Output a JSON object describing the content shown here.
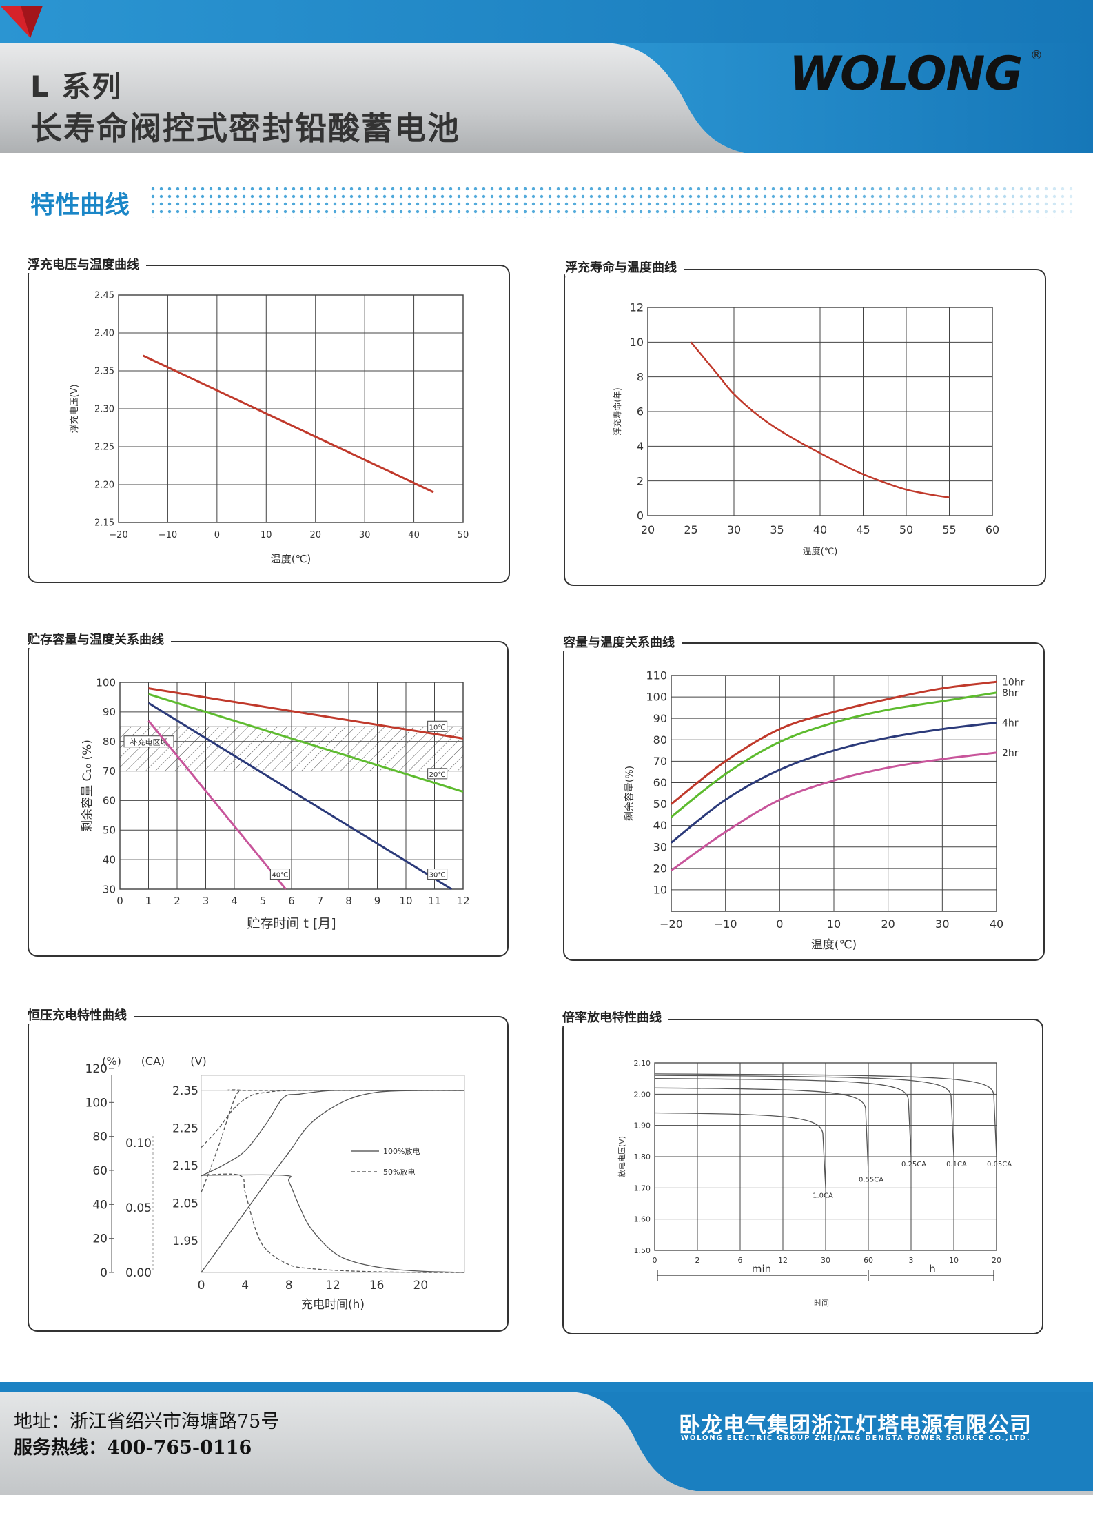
{
  "header": {
    "series_name": "L 系列",
    "product_name": "长寿命阀控式密封铅酸蓄电池",
    "brand_logo_text": "WOLONG",
    "brand_registered_mark": "®",
    "colors": {
      "blue": "#1a86c7",
      "gray": "#b9bcbe",
      "logo_red": "#d6222a"
    }
  },
  "section": {
    "title": "特性曲线"
  },
  "charts": {
    "float_voltage_temp": {
      "title": "浮充电压与温度曲线"
    },
    "float_life_temp": {
      "title": "浮充寿命与温度曲线"
    },
    "storage_capacity_temp": {
      "title": "贮存容量与温度关系曲线"
    },
    "capacity_temp": {
      "title": "容量与温度关系曲线"
    },
    "cv_charge": {
      "title": "恒压充电特性曲线"
    },
    "rate_discharge": {
      "title": "倍率放电特性曲线"
    }
  },
  "chart_data": [
    {
      "id": "float_voltage_temp",
      "type": "line",
      "xlabel": "温度(℃)",
      "ylabel": "浮充电压(V)",
      "xlim": [
        -20,
        50
      ],
      "ylim": [
        2.15,
        2.45
      ],
      "xticks": [
        -20,
        -10,
        0,
        10,
        20,
        30,
        40,
        50
      ],
      "yticks": [
        2.15,
        2.2,
        2.25,
        2.3,
        2.35,
        2.4,
        2.45
      ],
      "series": [
        {
          "color": "#c0392b",
          "x": [
            -15,
            44
          ],
          "y": [
            2.37,
            2.19
          ]
        }
      ]
    },
    {
      "id": "float_life_temp",
      "type": "line",
      "xlabel": "温度(℃)",
      "ylabel": "浮充寿命(年)",
      "xlim": [
        20,
        60
      ],
      "ylim": [
        0,
        12
      ],
      "xticks": [
        20,
        25,
        30,
        35,
        40,
        45,
        50,
        55,
        60
      ],
      "yticks": [
        0,
        2,
        4,
        6,
        8,
        10,
        12
      ],
      "series": [
        {
          "color": "#c0392b",
          "x": [
            25,
            28,
            30,
            33,
            36,
            40,
            44,
            47,
            50,
            53,
            55
          ],
          "y": [
            10,
            8.2,
            7.0,
            5.7,
            4.7,
            3.6,
            2.6,
            2.0,
            1.5,
            1.2,
            1.05
          ]
        }
      ]
    },
    {
      "id": "storage_capacity_temp",
      "type": "line",
      "xlabel": "贮存时间 t [月]",
      "ylabel": "剩余容量 C₁₀ (%)",
      "xlim": [
        0,
        12
      ],
      "ylim": [
        30,
        100
      ],
      "xticks": [
        0,
        1,
        2,
        3,
        4,
        5,
        6,
        7,
        8,
        9,
        10,
        11,
        12
      ],
      "yticks": [
        30,
        40,
        50,
        60,
        70,
        80,
        90,
        100
      ],
      "band": {
        "label": "补充电区域",
        "from": 70,
        "to": 85
      },
      "series": [
        {
          "name": "10℃",
          "color": "#c0392b",
          "x": [
            1,
            12
          ],
          "y": [
            98,
            81
          ]
        },
        {
          "name": "20℃",
          "color": "#5dbb2e",
          "x": [
            1,
            12
          ],
          "y": [
            96,
            63
          ]
        },
        {
          "name": "30℃",
          "color": "#2b3a7a",
          "x": [
            1,
            11.6
          ],
          "y": [
            93,
            30
          ]
        },
        {
          "name": "40℃",
          "color": "#c8559b",
          "x": [
            1,
            5.8
          ],
          "y": [
            87,
            30
          ]
        }
      ]
    },
    {
      "id": "capacity_temp",
      "type": "line",
      "xlabel": "温度(℃)",
      "ylabel": "剩余容量(%)",
      "xlim": [
        -20,
        40
      ],
      "ylim": [
        0,
        110
      ],
      "xticks": [
        -20,
        -10,
        0,
        10,
        20,
        30,
        40
      ],
      "yticks": [
        10,
        20,
        30,
        40,
        50,
        60,
        70,
        80,
        90,
        100,
        110
      ],
      "series": [
        {
          "name": "10hr",
          "color": "#c0392b",
          "x": [
            -20,
            -10,
            0,
            10,
            20,
            30,
            40
          ],
          "y": [
            50,
            70,
            85,
            93,
            99,
            104,
            107
          ]
        },
        {
          "name": "8hr",
          "color": "#5dbb2e",
          "x": [
            -20,
            -10,
            0,
            10,
            20,
            30,
            40
          ],
          "y": [
            44,
            64,
            79,
            88,
            94,
            98,
            102
          ]
        },
        {
          "name": "4hr",
          "color": "#2b3a7a",
          "x": [
            -20,
            -10,
            0,
            10,
            20,
            30,
            40
          ],
          "y": [
            32,
            52,
            66,
            75,
            81,
            85,
            88
          ]
        },
        {
          "name": "2hr",
          "color": "#c8559b",
          "x": [
            -20,
            -10,
            0,
            10,
            20,
            30,
            40
          ],
          "y": [
            19,
            37,
            52,
            61,
            67,
            71,
            74
          ]
        }
      ]
    },
    {
      "id": "cv_charge",
      "type": "line",
      "xlabel": "充电时间(h)",
      "unit_labels": [
        "(%)",
        "(CA)",
        "(V)"
      ],
      "xlim": [
        0,
        24
      ],
      "xticks": [
        0,
        4,
        8,
        12,
        16,
        20
      ],
      "y_percent_ticks": [
        "0",
        "20",
        "40",
        "60",
        "80",
        "100",
        "120"
      ],
      "y_ca_ticks": [
        "0.00",
        "0.05",
        "0.10"
      ],
      "y_voltage_ticks": [
        "1.95",
        "2.05",
        "2.15",
        "2.25",
        "2.35"
      ],
      "legend": [
        "100%放电",
        "50%放电"
      ],
      "series": [
        {
          "name": "100%放电 电压",
          "style": "solid",
          "x": [
            0,
            2,
            4,
            6,
            7.5,
            9,
            12,
            16,
            20,
            24
          ],
          "y_norm": [
            0.52,
            0.58,
            0.66,
            0.82,
            0.96,
            0.98,
            1.0,
            1.0,
            1.0,
            1.0
          ]
        },
        {
          "name": "50%放电 电压",
          "style": "dashed",
          "x": [
            0,
            1.5,
            3,
            4.5,
            6,
            8,
            12,
            16,
            24
          ],
          "y_norm": [
            0.68,
            0.78,
            0.9,
            0.97,
            0.99,
            1.0,
            1.0,
            1.0,
            1.0
          ]
        },
        {
          "name": "100%放电 电流",
          "style": "solid",
          "x": [
            0,
            7.5,
            8,
            9,
            10,
            12,
            14,
            17,
            20,
            24
          ],
          "y_norm": [
            0.75,
            0.75,
            0.7,
            0.5,
            0.34,
            0.16,
            0.08,
            0.03,
            0.01,
            0.0
          ]
        },
        {
          "name": "50%放电 电流",
          "style": "dashed",
          "x": [
            0,
            3.5,
            4,
            5,
            6,
            8,
            10,
            14,
            20,
            24
          ],
          "y_norm": [
            0.75,
            0.75,
            0.62,
            0.32,
            0.17,
            0.06,
            0.03,
            0.01,
            0.0,
            0.0
          ]
        },
        {
          "name": "100%放电 容量",
          "style": "solid",
          "x": [
            0,
            3,
            6,
            8,
            10,
            13,
            16,
            20,
            24
          ],
          "y_norm": [
            0.0,
            0.25,
            0.5,
            0.66,
            0.82,
            0.94,
            0.99,
            1.0,
            1.0
          ]
        },
        {
          "name": "50%放电 容量",
          "style": "dashed",
          "x": [
            0,
            1.5,
            3,
            3.6,
            4,
            24
          ],
          "y_norm": [
            0.44,
            0.68,
            0.95,
            1.0,
            1.0,
            1.0
          ]
        }
      ]
    },
    {
      "id": "rate_discharge",
      "type": "line",
      "xlabel": "时间",
      "ylabel": "放电电压(V)",
      "ylim": [
        1.5,
        2.1
      ],
      "yticks": [
        "1.50",
        "1.60",
        "1.70",
        "1.80",
        "1.90",
        "2.00",
        "2.10"
      ],
      "xticks": [
        "0",
        "2",
        "6",
        "12",
        "30",
        "60",
        "3",
        "10",
        "20"
      ],
      "range_labels": [
        "min",
        "h"
      ],
      "series": [
        {
          "name": "1.0CA",
          "end_x": 4,
          "start_v": 1.94,
          "end_v": 1.7
        },
        {
          "name": "0.55CA",
          "end_x": 5,
          "start_v": 2.02,
          "end_v": 1.75
        },
        {
          "name": "0.25CA",
          "end_x": 6,
          "start_v": 2.05,
          "end_v": 1.8
        },
        {
          "name": "0.1CA",
          "end_x": 7,
          "start_v": 2.06,
          "end_v": 1.8
        },
        {
          "name": "0.05CA",
          "end_x": 8,
          "start_v": 2.065,
          "end_v": 1.8
        }
      ]
    }
  ],
  "footer": {
    "address": "地址：浙江省绍兴市海塘路75号",
    "hotline": "服务热线：400-765-0116",
    "company_cn": "卧龙电气集团浙江灯塔电源有限公司",
    "company_en": "WOLONG ELECTRIC GROUP ZHEJIANG DENGTA POWER SOURCE CO.,LTD."
  }
}
